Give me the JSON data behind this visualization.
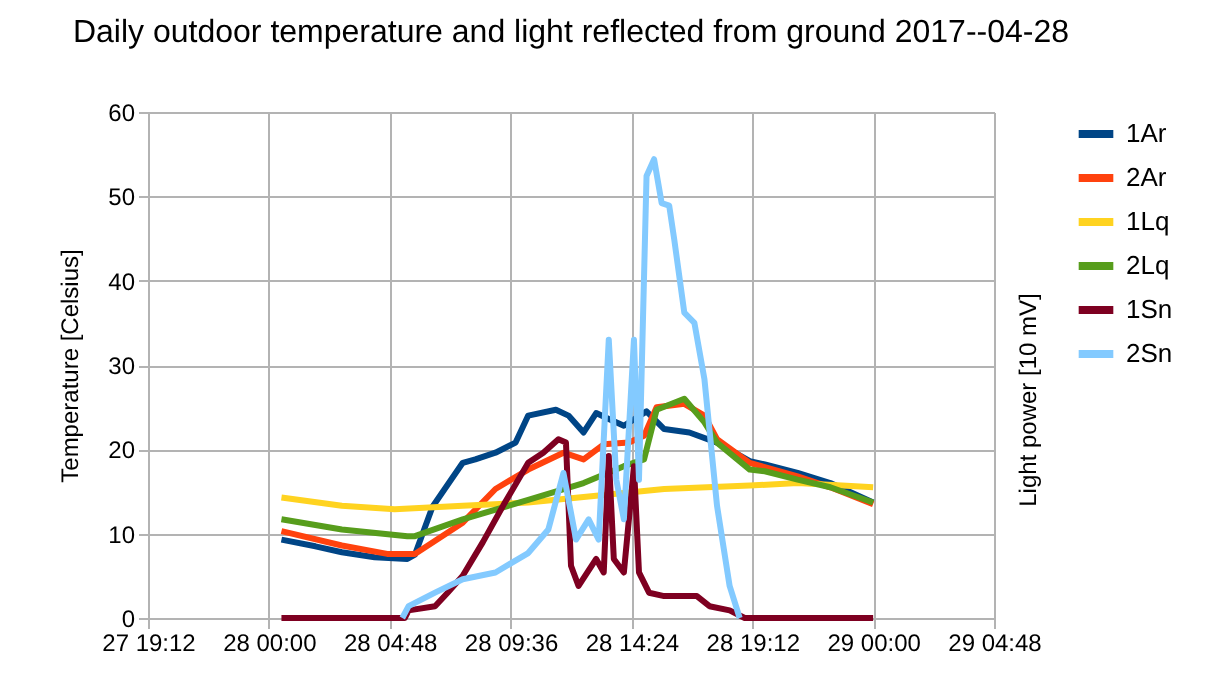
{
  "chart_data": {
    "type": "line",
    "title": "Daily outdoor temperature and light reflected from ground 2017--04-28",
    "ylabel": "Temperature [Celsius]",
    "y2label": "Light power [10 mV]",
    "xlim": [
      "2017-04-27T19:12",
      "2017-04-29T04:48"
    ],
    "xticks": [
      {
        "value": "2017-04-27T19:12",
        "label": "27 19:12"
      },
      {
        "value": "2017-04-28T00:00",
        "label": "28 00:00"
      },
      {
        "value": "2017-04-28T04:48",
        "label": "28 04:48"
      },
      {
        "value": "2017-04-28T09:36",
        "label": "28 09:36"
      },
      {
        "value": "2017-04-28T14:24",
        "label": "28 14:24"
      },
      {
        "value": "2017-04-28T19:12",
        "label": "28 19:12"
      },
      {
        "value": "2017-04-29T00:00",
        "label": "29 00:00"
      },
      {
        "value": "2017-04-29T04:48",
        "label": "29 04:48"
      }
    ],
    "ylim": [
      0,
      60
    ],
    "yticks": [
      0,
      10,
      20,
      30,
      40,
      50,
      60
    ],
    "grid": true,
    "legend": "right",
    "marker": "none",
    "line_style": "solid",
    "series": [
      {
        "name": "1Ar",
        "color": "#004586",
        "x": [
          "2017-04-28T00:30",
          "2017-04-28T01:51",
          "2017-04-28T02:54",
          "2017-04-28T04:12",
          "2017-04-28T05:30",
          "2017-04-28T05:48",
          "2017-04-28T06:30",
          "2017-04-28T07:42",
          "2017-04-28T08:12",
          "2017-04-28T09:00",
          "2017-04-28T09:48",
          "2017-04-28T10:18",
          "2017-04-28T11:24",
          "2017-04-28T11:54",
          "2017-04-28T12:30",
          "2017-04-28T13:00",
          "2017-04-28T13:30",
          "2017-04-28T14:06",
          "2017-04-28T15:00",
          "2017-04-28T15:42",
          "2017-04-28T16:42",
          "2017-04-28T17:48",
          "2017-04-28T19:06",
          "2017-04-28T19:42",
          "2017-04-28T21:00",
          "2017-04-28T22:18",
          "2017-04-29T00:00"
        ],
        "values": [
          9.3,
          8.5,
          7.8,
          7.2,
          7.0,
          7.5,
          13.2,
          18.4,
          18.8,
          19.6,
          20.8,
          24,
          24.7,
          24,
          22,
          24.3,
          23.6,
          22.8,
          24.5,
          22.4,
          22,
          20.8,
          18.6,
          18.2,
          17.2,
          16,
          13.7
        ]
      },
      {
        "name": "2Ar",
        "color": "#ff420e",
        "x": [
          "2017-04-28T00:30",
          "2017-04-28T02:54",
          "2017-04-28T04:42",
          "2017-04-28T05:48",
          "2017-04-28T07:42",
          "2017-04-28T09:00",
          "2017-04-28T10:18",
          "2017-04-28T11:42",
          "2017-04-28T12:30",
          "2017-04-28T13:18",
          "2017-04-28T14:18",
          "2017-04-28T14:54",
          "2017-04-28T15:24",
          "2017-04-28T16:30",
          "2017-04-28T17:18",
          "2017-04-28T17:48",
          "2017-04-28T19:06",
          "2017-04-28T21:00",
          "2017-04-28T22:18",
          "2017-04-29T00:00"
        ],
        "values": [
          10.3,
          8.6,
          7.6,
          7.6,
          11.3,
          15.3,
          17.6,
          19.6,
          18.8,
          20.6,
          20.8,
          21.6,
          25,
          25.4,
          24,
          21.2,
          18.4,
          16.8,
          15.5,
          13.5
        ]
      },
      {
        "name": "1Lq",
        "color": "#ffd320",
        "x": [
          "2017-04-28T00:30",
          "2017-04-28T02:54",
          "2017-04-28T05:00",
          "2017-04-28T07:42",
          "2017-04-28T10:18",
          "2017-04-28T13:00",
          "2017-04-28T15:42",
          "2017-04-28T19:06",
          "2017-04-28T21:00",
          "2017-04-29T00:00"
        ],
        "values": [
          14.3,
          13.3,
          12.9,
          13.3,
          13.7,
          14.5,
          15.3,
          15.7,
          16,
          15.5
        ]
      },
      {
        "name": "2Lq",
        "color": "#579d1c",
        "x": [
          "2017-04-28T00:30",
          "2017-04-28T02:54",
          "2017-04-28T05:30",
          "2017-04-28T05:48",
          "2017-04-28T07:42",
          "2017-04-28T10:18",
          "2017-04-28T12:30",
          "2017-04-28T14:06",
          "2017-04-28T14:54",
          "2017-04-28T15:24",
          "2017-04-28T16:30",
          "2017-04-28T17:18",
          "2017-04-28T17:48",
          "2017-04-28T19:06",
          "2017-04-28T19:42",
          "2017-04-28T21:00",
          "2017-04-28T22:18",
          "2017-04-29T00:00"
        ],
        "values": [
          11.7,
          10.5,
          9.7,
          9.7,
          11.7,
          14,
          16,
          18,
          18.8,
          24.7,
          26,
          23.2,
          20.8,
          17.6,
          17.4,
          16.4,
          15.5,
          13.7
        ]
      },
      {
        "name": "1Sn",
        "color": "#7e0021",
        "x": [
          "2017-04-28T00:30",
          "2017-04-28T05:24",
          "2017-04-28T05:33",
          "2017-04-28T06:36",
          "2017-04-28T07:06",
          "2017-04-28T07:42",
          "2017-04-28T08:30",
          "2017-04-28T09:18",
          "2017-04-28T10:18",
          "2017-04-28T10:54",
          "2017-04-28T11:30",
          "2017-04-28T11:48",
          "2017-04-28T12:00",
          "2017-04-28T12:18",
          "2017-04-28T13:00",
          "2017-04-28T13:18",
          "2017-04-28T13:30",
          "2017-04-28T13:42",
          "2017-04-28T14:06",
          "2017-04-28T14:30",
          "2017-04-28T14:42",
          "2017-04-28T15:06",
          "2017-04-28T15:42",
          "2017-04-28T17:00",
          "2017-04-28T17:30",
          "2017-04-28T18:18",
          "2017-04-28T18:54",
          "2017-04-29T00:00"
        ],
        "values": [
          0,
          0,
          0.9,
          1.4,
          3,
          5,
          9,
          13.3,
          18.4,
          19.6,
          21.2,
          20.8,
          6.2,
          3.8,
          7,
          5.4,
          19.2,
          7,
          5.4,
          18,
          5.4,
          3,
          2.6,
          2.6,
          1.4,
          0.9,
          0,
          0
        ]
      },
      {
        "name": "2Sn",
        "color": "#83caff",
        "x": [
          "2017-04-28T05:18",
          "2017-04-28T05:33",
          "2017-04-28T06:36",
          "2017-04-28T07:42",
          "2017-04-28T09:00",
          "2017-04-28T10:18",
          "2017-04-28T11:06",
          "2017-04-28T11:42",
          "2017-04-28T12:12",
          "2017-04-28T12:42",
          "2017-04-28T13:06",
          "2017-04-28T13:30",
          "2017-04-28T13:48",
          "2017-04-28T14:06",
          "2017-04-28T14:30",
          "2017-04-28T14:42",
          "2017-04-28T15:00",
          "2017-04-28T15:18",
          "2017-04-28T15:36",
          "2017-04-28T15:54",
          "2017-04-28T16:06",
          "2017-04-28T16:30",
          "2017-04-28T16:54",
          "2017-04-28T17:18",
          "2017-04-28T17:48",
          "2017-04-28T18:18",
          "2017-04-28T18:42"
        ],
        "values": [
          0,
          1.4,
          3,
          4.6,
          5.4,
          7.7,
          10.5,
          17.2,
          9.3,
          11.7,
          9.3,
          33,
          16.4,
          11.7,
          33,
          16.4,
          52.4,
          54.4,
          49.2,
          48.9,
          44.9,
          36.2,
          35,
          28.3,
          13.3,
          3.8,
          0
        ]
      }
    ]
  }
}
